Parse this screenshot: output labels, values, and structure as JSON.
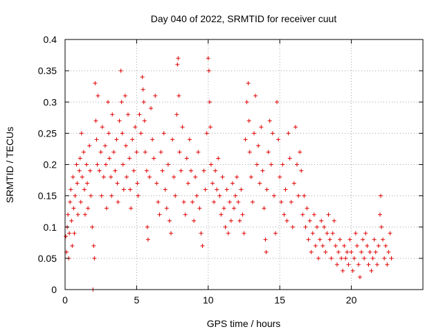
{
  "chart_data": {
    "type": "scatter",
    "title": "Day 040 of 2022, SRMTID for receiver cuut",
    "xlabel": "GPS time / hours",
    "ylabel": "SRMTID / TECUs",
    "xlim": [
      0,
      25
    ],
    "ylim": [
      0,
      0.4
    ],
    "xticks": [
      "0",
      "5",
      "10",
      "15",
      "20"
    ],
    "xtick_values": [
      0,
      5,
      10,
      15,
      20
    ],
    "yticks": [
      "0",
      "0.05",
      "0.1",
      "0.15",
      "0.2",
      "0.25",
      "0.3",
      "0.35",
      "0.4"
    ],
    "ytick_values": [
      0,
      0.05,
      0.1,
      0.15,
      0.2,
      0.25,
      0.3,
      0.35,
      0.4
    ],
    "grid": true,
    "marker": "+",
    "color": "#e00000",
    "series": [
      {
        "name": "",
        "points": [
          [
            0.05,
            0.085
          ],
          [
            0.1,
            0.06
          ],
          [
            0.15,
            0.1
          ],
          [
            0.2,
            0.12
          ],
          [
            0.25,
            0.05
          ],
          [
            0.3,
            0.09
          ],
          [
            0.35,
            0.14
          ],
          [
            0.4,
            0.16
          ],
          [
            0.45,
            0.11
          ],
          [
            0.5,
            0.07
          ],
          [
            0.55,
            0.18
          ],
          [
            0.6,
            0.13
          ],
          [
            0.65,
            0.09
          ],
          [
            0.7,
            0.15
          ],
          [
            0.8,
            0.2
          ],
          [
            0.85,
            0.17
          ],
          [
            0.9,
            0.12
          ],
          [
            1.0,
            0.19
          ],
          [
            1.05,
            0.21
          ],
          [
            1.1,
            0.14
          ],
          [
            1.15,
            0.25
          ],
          [
            1.2,
            0.18
          ],
          [
            1.3,
            0.22
          ],
          [
            1.35,
            0.16
          ],
          [
            1.4,
            0.12
          ],
          [
            1.5,
            0.2
          ],
          [
            1.55,
            0.17
          ],
          [
            1.6,
            0.13
          ],
          [
            1.7,
            0.23
          ],
          [
            1.75,
            0.19
          ],
          [
            1.8,
            0.15
          ],
          [
            1.9,
            0.1
          ],
          [
            1.95,
            0.0
          ],
          [
            2.0,
            0.07
          ],
          [
            2.05,
            0.05
          ],
          [
            2.1,
            0.33
          ],
          [
            2.15,
            0.27
          ],
          [
            2.2,
            0.24
          ],
          [
            2.25,
            0.2
          ],
          [
            2.3,
            0.31
          ],
          [
            2.4,
            0.19
          ],
          [
            2.5,
            0.22
          ],
          [
            2.55,
            0.15
          ],
          [
            2.6,
            0.26
          ],
          [
            2.7,
            0.18
          ],
          [
            2.8,
            0.23
          ],
          [
            2.85,
            0.2
          ],
          [
            2.9,
            0.13
          ],
          [
            3.0,
            0.3
          ],
          [
            3.05,
            0.25
          ],
          [
            3.1,
            0.21
          ],
          [
            3.2,
            0.18
          ],
          [
            3.25,
            0.15
          ],
          [
            3.3,
            0.28
          ],
          [
            3.4,
            0.22
          ],
          [
            3.5,
            0.19
          ],
          [
            3.6,
            0.24
          ],
          [
            3.65,
            0.17
          ],
          [
            3.7,
            0.14
          ],
          [
            3.8,
            0.27
          ],
          [
            3.9,
            0.35
          ],
          [
            3.95,
            0.3
          ],
          [
            4.0,
            0.25
          ],
          [
            4.05,
            0.2
          ],
          [
            4.1,
            0.16
          ],
          [
            4.2,
            0.31
          ],
          [
            4.25,
            0.23
          ],
          [
            4.3,
            0.18
          ],
          [
            4.4,
            0.28
          ],
          [
            4.5,
            0.21
          ],
          [
            4.55,
            0.16
          ],
          [
            4.6,
            0.13
          ],
          [
            4.7,
            0.24
          ],
          [
            4.8,
            0.19
          ],
          [
            4.9,
            0.26
          ],
          [
            5.0,
            0.22
          ],
          [
            5.05,
            0.17
          ],
          [
            5.1,
            0.15
          ],
          [
            5.2,
            0.28
          ],
          [
            5.3,
            0.25
          ],
          [
            5.4,
            0.34
          ],
          [
            5.45,
            0.32
          ],
          [
            5.5,
            0.3
          ],
          [
            5.55,
            0.27
          ],
          [
            5.6,
            0.22
          ],
          [
            5.7,
            0.19
          ],
          [
            5.75,
            0.1
          ],
          [
            5.8,
            0.08
          ],
          [
            5.9,
            0.18
          ],
          [
            6.0,
            0.29
          ],
          [
            6.1,
            0.24
          ],
          [
            6.2,
            0.21
          ],
          [
            6.3,
            0.31
          ],
          [
            6.4,
            0.17
          ],
          [
            6.5,
            0.14
          ],
          [
            6.6,
            0.12
          ],
          [
            6.7,
            0.22
          ],
          [
            6.8,
            0.19
          ],
          [
            6.9,
            0.25
          ],
          [
            7.0,
            0.16
          ],
          [
            7.1,
            0.13
          ],
          [
            7.2,
            0.2
          ],
          [
            7.3,
            0.11
          ],
          [
            7.4,
            0.09
          ],
          [
            7.5,
            0.24
          ],
          [
            7.6,
            0.18
          ],
          [
            7.7,
            0.15
          ],
          [
            7.8,
            0.28
          ],
          [
            7.85,
            0.36
          ],
          [
            7.9,
            0.37
          ],
          [
            7.95,
            0.31
          ],
          [
            8.0,
            0.22
          ],
          [
            8.1,
            0.19
          ],
          [
            8.2,
            0.26
          ],
          [
            8.3,
            0.14
          ],
          [
            8.4,
            0.12
          ],
          [
            8.5,
            0.21
          ],
          [
            8.6,
            0.17
          ],
          [
            8.7,
            0.24
          ],
          [
            8.8,
            0.19
          ],
          [
            8.9,
            0.14
          ],
          [
            9.0,
            0.11
          ],
          [
            9.1,
            0.18
          ],
          [
            9.2,
            0.15
          ],
          [
            9.3,
            0.22
          ],
          [
            9.4,
            0.13
          ],
          [
            9.5,
            0.09
          ],
          [
            9.6,
            0.07
          ],
          [
            9.7,
            0.19
          ],
          [
            9.8,
            0.16
          ],
          [
            9.9,
            0.25
          ],
          [
            10.0,
            0.37
          ],
          [
            10.05,
            0.35
          ],
          [
            10.1,
            0.3
          ],
          [
            10.15,
            0.26
          ],
          [
            10.2,
            0.2
          ],
          [
            10.3,
            0.17
          ],
          [
            10.4,
            0.14
          ],
          [
            10.5,
            0.19
          ],
          [
            10.6,
            0.16
          ],
          [
            10.7,
            0.21
          ],
          [
            10.8,
            0.15
          ],
          [
            10.9,
            0.12
          ],
          [
            11.0,
            0.18
          ],
          [
            11.1,
            0.13
          ],
          [
            11.2,
            0.1
          ],
          [
            11.3,
            0.16
          ],
          [
            11.4,
            0.09
          ],
          [
            11.5,
            0.14
          ],
          [
            11.6,
            0.11
          ],
          [
            11.7,
            0.17
          ],
          [
            11.8,
            0.13
          ],
          [
            11.9,
            0.15
          ],
          [
            12.0,
            0.18
          ],
          [
            12.1,
            0.14
          ],
          [
            12.2,
            0.11
          ],
          [
            12.3,
            0.16
          ],
          [
            12.4,
            0.12
          ],
          [
            12.5,
            0.09
          ],
          [
            12.6,
            0.24
          ],
          [
            12.7,
            0.3
          ],
          [
            12.8,
            0.33
          ],
          [
            12.85,
            0.27
          ],
          [
            12.9,
            0.22
          ],
          [
            13.0,
            0.18
          ],
          [
            13.1,
            0.14
          ],
          [
            13.2,
            0.25
          ],
          [
            13.3,
            0.31
          ],
          [
            13.4,
            0.2
          ],
          [
            13.5,
            0.23
          ],
          [
            13.6,
            0.17
          ],
          [
            13.7,
            0.26
          ],
          [
            13.8,
            0.19
          ],
          [
            13.9,
            0.13
          ],
          [
            14.0,
            0.08
          ],
          [
            14.05,
            0.06
          ],
          [
            14.1,
            0.16
          ],
          [
            14.2,
            0.22
          ],
          [
            14.3,
            0.27
          ],
          [
            14.4,
            0.2
          ],
          [
            14.5,
            0.25
          ],
          [
            14.6,
            0.15
          ],
          [
            14.7,
            0.09
          ],
          [
            14.8,
            0.3
          ],
          [
            14.9,
            0.24
          ],
          [
            15.0,
            0.18
          ],
          [
            15.1,
            0.14
          ],
          [
            15.2,
            0.2
          ],
          [
            15.3,
            0.12
          ],
          [
            15.4,
            0.16
          ],
          [
            15.5,
            0.11
          ],
          [
            15.6,
            0.25
          ],
          [
            15.7,
            0.21
          ],
          [
            15.8,
            0.14
          ],
          [
            15.9,
            0.1
          ],
          [
            16.0,
            0.17
          ],
          [
            16.1,
            0.26
          ],
          [
            16.2,
            0.2
          ],
          [
            16.3,
            0.15
          ],
          [
            16.4,
            0.22
          ],
          [
            16.5,
            0.19
          ],
          [
            16.6,
            0.12
          ],
          [
            16.7,
            0.15
          ],
          [
            16.8,
            0.1
          ],
          [
            16.9,
            0.13
          ],
          [
            17.0,
            0.08
          ],
          [
            17.1,
            0.11
          ],
          [
            17.2,
            0.06
          ],
          [
            17.3,
            0.09
          ],
          [
            17.4,
            0.12
          ],
          [
            17.5,
            0.07
          ],
          [
            17.6,
            0.1
          ],
          [
            17.7,
            0.05
          ],
          [
            17.8,
            0.08
          ],
          [
            17.9,
            0.11
          ],
          [
            18.0,
            0.07
          ],
          [
            18.1,
            0.1
          ],
          [
            18.2,
            0.06
          ],
          [
            18.3,
            0.09
          ],
          [
            18.4,
            0.12
          ],
          [
            18.5,
            0.08
          ],
          [
            18.6,
            0.05
          ],
          [
            18.7,
            0.09
          ],
          [
            18.8,
            0.11
          ],
          [
            18.9,
            0.07
          ],
          [
            19.0,
            0.04
          ],
          [
            19.1,
            0.06
          ],
          [
            19.2,
            0.08
          ],
          [
            19.3,
            0.05
          ],
          [
            19.4,
            0.03
          ],
          [
            19.5,
            0.07
          ],
          [
            19.6,
            0.05
          ],
          [
            19.7,
            0.06
          ],
          [
            19.8,
            0.04
          ],
          [
            19.9,
            0.08
          ],
          [
            20.0,
            0.06
          ],
          [
            20.1,
            0.03
          ],
          [
            20.2,
            0.05
          ],
          [
            20.3,
            0.09
          ],
          [
            20.4,
            0.07
          ],
          [
            20.5,
            0.04
          ],
          [
            20.6,
            0.02
          ],
          [
            20.7,
            0.06
          ],
          [
            20.8,
            0.08
          ],
          [
            20.9,
            0.05
          ],
          [
            21.0,
            0.09
          ],
          [
            21.1,
            0.07
          ],
          [
            21.2,
            0.04
          ],
          [
            21.3,
            0.06
          ],
          [
            21.4,
            0.03
          ],
          [
            21.5,
            0.05
          ],
          [
            21.6,
            0.08
          ],
          [
            21.7,
            0.06
          ],
          [
            21.8,
            0.04
          ],
          [
            21.9,
            0.07
          ],
          [
            22.0,
            0.12
          ],
          [
            22.05,
            0.15
          ],
          [
            22.1,
            0.1
          ],
          [
            22.2,
            0.08
          ],
          [
            22.3,
            0.05
          ],
          [
            22.4,
            0.07
          ],
          [
            22.5,
            0.04
          ],
          [
            22.6,
            0.06
          ],
          [
            22.7,
            0.09
          ],
          [
            22.8,
            0.05
          ]
        ]
      }
    ]
  }
}
